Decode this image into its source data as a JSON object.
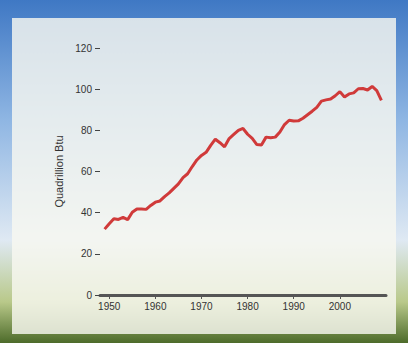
{
  "chart_data": {
    "type": "line",
    "y_label": "Quadrillion Btu",
    "x": [
      1949,
      1950,
      1951,
      1952,
      1953,
      1954,
      1955,
      1956,
      1957,
      1958,
      1959,
      1960,
      1961,
      1962,
      1963,
      1964,
      1965,
      1966,
      1967,
      1968,
      1969,
      1970,
      1971,
      1972,
      1973,
      1974,
      1975,
      1976,
      1977,
      1978,
      1979,
      1980,
      1981,
      1982,
      1983,
      1984,
      1985,
      1986,
      1987,
      1988,
      1989,
      1990,
      1991,
      1992,
      1993,
      1994,
      1995,
      1996,
      1997,
      1998,
      1999,
      2000,
      2001,
      2002,
      2003,
      2004,
      2005,
      2006,
      2007,
      2008,
      2009
    ],
    "values": [
      32.0,
      34.6,
      37.0,
      36.7,
      37.7,
      36.6,
      40.2,
      41.8,
      41.8,
      41.6,
      43.5,
      45.1,
      45.7,
      47.8,
      49.6,
      51.8,
      54.0,
      57.0,
      58.9,
      62.4,
      65.6,
      67.8,
      69.3,
      72.7,
      75.7,
      74.0,
      72.0,
      76.0,
      78.0,
      80.0,
      80.9,
      78.1,
      76.1,
      73.1,
      72.9,
      76.7,
      76.4,
      76.7,
      79.2,
      82.8,
      84.9,
      84.5,
      84.6,
      85.9,
      87.6,
      89.3,
      91.2,
      94.2,
      94.8,
      95.2,
      96.8,
      98.8,
      96.2,
      97.7,
      98.2,
      100.2,
      100.3,
      99.6,
      101.3,
      99.3,
      94.6
    ],
    "color": "#d03a3a",
    "marker": "none",
    "xlim": [
      1948,
      2010
    ],
    "xticks": [
      1950,
      1960,
      1970,
      1980,
      1990,
      2000
    ],
    "ylim": [
      0,
      120
    ],
    "yticks": [
      0,
      20,
      40,
      60,
      80,
      100,
      120
    ],
    "grid": false
  }
}
